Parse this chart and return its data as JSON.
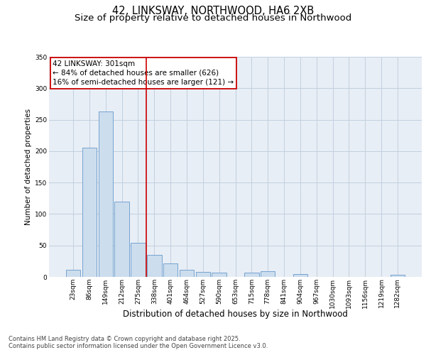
{
  "title1": "42, LINKSWAY, NORTHWOOD, HA6 2XB",
  "title2": "Size of property relative to detached houses in Northwood",
  "xlabel": "Distribution of detached houses by size in Northwood",
  "ylabel": "Number of detached properties",
  "categories": [
    "23sqm",
    "86sqm",
    "149sqm",
    "212sqm",
    "275sqm",
    "338sqm",
    "401sqm",
    "464sqm",
    "527sqm",
    "590sqm",
    "653sqm",
    "715sqm",
    "778sqm",
    "841sqm",
    "904sqm",
    "967sqm",
    "1030sqm",
    "1093sqm",
    "1156sqm",
    "1219sqm",
    "1282sqm"
  ],
  "values": [
    11,
    206,
    263,
    120,
    54,
    35,
    22,
    11,
    8,
    7,
    0,
    7,
    9,
    0,
    4,
    0,
    0,
    0,
    0,
    0,
    3
  ],
  "bar_color": "#ccdded",
  "bar_edge_color": "#6699cc",
  "vline_x": 3.5,
  "vline_color": "#cc0000",
  "annotation_line1": "42 LINKSWAY: 301sqm",
  "annotation_line2": "← 84% of detached houses are smaller (626)",
  "annotation_line3": "16% of semi-detached houses are larger (121) →",
  "annotation_box_color": "#cc0000",
  "ylim": [
    0,
    350
  ],
  "yticks": [
    0,
    50,
    100,
    150,
    200,
    250,
    300,
    350
  ],
  "grid_color": "#c0d0e0",
  "bg_color": "#e8eef5",
  "footer_line1": "Contains HM Land Registry data © Crown copyright and database right 2025.",
  "footer_line2": "Contains public sector information licensed under the Open Government Licence v3.0.",
  "title1_fontsize": 10.5,
  "title2_fontsize": 9.5,
  "xlabel_fontsize": 8.5,
  "ylabel_fontsize": 7.5,
  "tick_fontsize": 6.5,
  "annotation_fontsize": 7.5,
  "footer_fontsize": 6.0
}
